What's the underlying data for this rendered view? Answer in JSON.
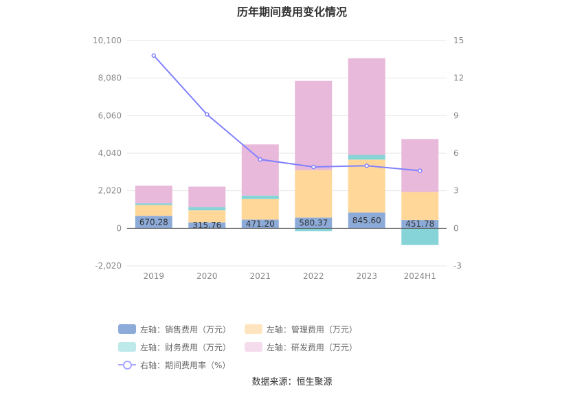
{
  "chart_data": {
    "type": "bar",
    "title": "历年期间费用变化情况",
    "categories": [
      "2019",
      "2020",
      "2021",
      "2022",
      "2023",
      "2024H1"
    ],
    "left_axis": {
      "min": -2020,
      "max": 10100,
      "ticks": [
        "-2,020",
        "0",
        "2,020",
        "4,040",
        "6,060",
        "8,080",
        "10,100"
      ]
    },
    "right_axis": {
      "min": -3,
      "max": 15,
      "ticks": [
        "-3",
        "0",
        "3",
        "6",
        "9",
        "12",
        "15"
      ]
    },
    "series": [
      {
        "name": "左轴：销售费用（万元）",
        "color": "#8dabd9",
        "legend_color": "#8dabd9",
        "values": [
          670.28,
          315.76,
          471.2,
          580.37,
          845.6,
          451.78
        ],
        "labels": [
          "670.28",
          "315.76",
          "471.20",
          "580.37",
          "845.60",
          "451.78"
        ]
      },
      {
        "name": "左轴：管理费用（万元）",
        "color": "#ffd899",
        "legend_color": "#ffe5bf",
        "values": [
          580,
          650,
          1100,
          2550,
          2850,
          1500
        ]
      },
      {
        "name": "左轴：财务费用（万元）",
        "color": "#86d4d8",
        "legend_color": "#bde9ea",
        "values": [
          90,
          180,
          190,
          -150,
          250,
          -900
        ]
      },
      {
        "name": "左轴：研发费用（万元）",
        "color": "#e8b9da",
        "legend_color": "#f5dcec",
        "values": [
          950,
          1100,
          2750,
          4800,
          5200,
          2850
        ]
      }
    ],
    "line": {
      "name": "右轴：期间费用率（%）",
      "color": "#8080ff",
      "values": [
        13.8,
        9.1,
        5.5,
        4.9,
        5.0,
        4.6
      ]
    },
    "legend_position": "bottom",
    "grid": true
  },
  "source": "数据来源：恒生聚源"
}
